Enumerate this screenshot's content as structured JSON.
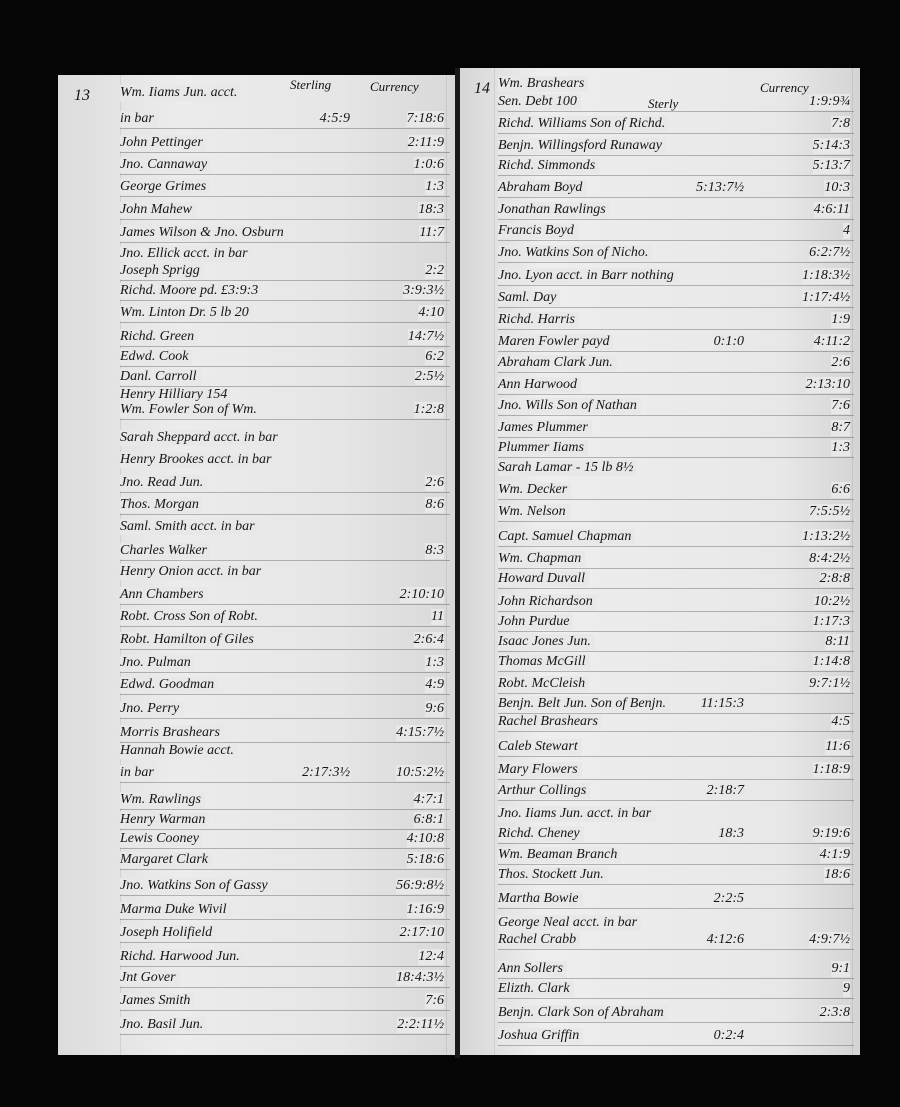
{
  "left_page": {
    "folio": "13",
    "header_sterling": "Sterling",
    "header_currency": "Currency",
    "entries": [
      {
        "name": "Wm. Iiams Jun. acct.",
        "sterling": "",
        "currency": ""
      },
      {
        "name": "in bar",
        "sterling": "4:5:9",
        "currency": "7:18:6"
      },
      {
        "name": "John Pettinger",
        "sterling": "",
        "currency": "2:11:9"
      },
      {
        "name": "Jno. Cannaway",
        "sterling": "",
        "currency": "1:0:6"
      },
      {
        "name": "George Grimes",
        "sterling": "",
        "currency": "1:3"
      },
      {
        "name": "John Mahew",
        "sterling": "",
        "currency": "18:3"
      },
      {
        "name": "James Wilson & Jno. Osburn",
        "sterling": "",
        "currency": "11:7"
      },
      {
        "name": "Jno. Ellick acct. in bar",
        "sterling": "",
        "currency": ""
      },
      {
        "name": "Joseph Sprigg",
        "sterling": "",
        "currency": "2:2"
      },
      {
        "name": "Richd. Moore pd. £3:9:3",
        "sterling": "",
        "currency": "3:9:3½"
      },
      {
        "name": "Wm. Linton Dr. 5 lb 20",
        "sterling": "",
        "currency": "4:10"
      },
      {
        "name": "Richd. Green",
        "sterling": "",
        "currency": "14:7½"
      },
      {
        "name": "Edwd. Cook",
        "sterling": "",
        "currency": "6:2"
      },
      {
        "name": "Danl. Carroll",
        "sterling": "",
        "currency": "2:5½"
      },
      {
        "name": "Henry Hilliary  154",
        "sterling": "",
        "currency": ""
      },
      {
        "name": "Wm. Fowler Son of Wm.",
        "sterling": "",
        "currency": "1:2:8"
      },
      {
        "name": "Sarah Sheppard acct. in bar",
        "sterling": "",
        "currency": ""
      },
      {
        "name": "Henry Brookes acct. in bar",
        "sterling": "",
        "currency": ""
      },
      {
        "name": "Jno. Read Jun.",
        "sterling": "",
        "currency": "2:6"
      },
      {
        "name": "Thos. Morgan",
        "sterling": "",
        "currency": "8:6"
      },
      {
        "name": "Saml. Smith acct. in bar",
        "sterling": "",
        "currency": ""
      },
      {
        "name": "Charles Walker",
        "sterling": "",
        "currency": "8:3"
      },
      {
        "name": "Henry Onion acct. in bar",
        "sterling": "",
        "currency": ""
      },
      {
        "name": "Ann Chambers",
        "sterling": "",
        "currency": "2:10:10"
      },
      {
        "name": "Robt. Cross Son of Robt.",
        "sterling": "",
        "currency": "11"
      },
      {
        "name": "Robt. Hamilton of Giles",
        "sterling": "",
        "currency": "2:6:4"
      },
      {
        "name": "Jno. Pulman",
        "sterling": "",
        "currency": "1:3"
      },
      {
        "name": "Edwd. Goodman",
        "sterling": "",
        "currency": "4:9"
      },
      {
        "name": "Jno. Perry",
        "sterling": "",
        "currency": "9:6"
      },
      {
        "name": "Morris Brashears",
        "sterling": "",
        "currency": "4:15:7½"
      },
      {
        "name": "Hannah Bowie acct.",
        "sterling": "",
        "currency": ""
      },
      {
        "name": "in bar",
        "sterling": "2:17:3½",
        "currency": "10:5:2½"
      },
      {
        "name": "Wm. Rawlings",
        "sterling": "",
        "currency": "4:7:1"
      },
      {
        "name": "Henry Warman",
        "sterling": "",
        "currency": "6:8:1"
      },
      {
        "name": "Lewis Cooney",
        "sterling": "",
        "currency": "4:10:8"
      },
      {
        "name": "Margaret Clark",
        "sterling": "",
        "currency": "5:18:6"
      },
      {
        "name": "Jno. Watkins Son of Gassy",
        "sterling": "",
        "currency": "56:9:8½"
      },
      {
        "name": "Marma Duke Wivil",
        "sterling": "",
        "currency": "1:16:9"
      },
      {
        "name": "Joseph Holifield",
        "sterling": "",
        "currency": "2:17:10"
      },
      {
        "name": "Richd. Harwood Jun.",
        "sterling": "",
        "currency": "12:4"
      },
      {
        "name": "Jnt Gover",
        "sterling": "",
        "currency": "18:4:3½"
      },
      {
        "name": "James Smith",
        "sterling": "",
        "currency": "7:6"
      },
      {
        "name": "Jno. Basil Jun.",
        "sterling": "",
        "currency": "2:2:11½"
      }
    ]
  },
  "right_page": {
    "folio": "14",
    "header_sterling": "Sterly",
    "header_currency": "Currency",
    "entries": [
      {
        "name": "Wm. Brashears",
        "sterling": "",
        "currency": ""
      },
      {
        "name": "Sen.    Debt 100",
        "sterling": "",
        "currency": "1:9:9¾"
      },
      {
        "name": "Richd. Williams Son of Richd.",
        "sterling": "",
        "currency": "7:8"
      },
      {
        "name": "Benjn. Willingsford Runaway",
        "sterling": "",
        "currency": "5:14:3"
      },
      {
        "name": "Richd. Simmonds",
        "sterling": "",
        "currency": "5:13:7"
      },
      {
        "name": "Abraham Boyd",
        "sterling": "5:13:7½",
        "currency": "10:3"
      },
      {
        "name": "Jonathan Rawlings",
        "sterling": "",
        "currency": "4:6:11"
      },
      {
        "name": "Francis Boyd",
        "sterling": "",
        "currency": "4"
      },
      {
        "name": "Jno. Watkins Son of Nicho.",
        "sterling": "",
        "currency": "6:2:7½"
      },
      {
        "name": "Jno. Lyon acct. in Barr nothing",
        "sterling": "",
        "currency": "1:18:3½"
      },
      {
        "name": "Saml. Day",
        "sterling": "",
        "currency": "1:17:4½"
      },
      {
        "name": "Richd. Harris",
        "sterling": "",
        "currency": "1:9"
      },
      {
        "name": "Maren Fowler payd",
        "sterling": "0:1:0",
        "currency": "4:11:2"
      },
      {
        "name": "Abraham Clark Jun.",
        "sterling": "",
        "currency": "2:6"
      },
      {
        "name": "Ann Harwood",
        "sterling": "",
        "currency": "2:13:10"
      },
      {
        "name": "Jno. Wills Son of Nathan",
        "sterling": "",
        "currency": "7:6"
      },
      {
        "name": "James Plummer",
        "sterling": "",
        "currency": "8:7"
      },
      {
        "name": "Plummer Iiams",
        "sterling": "",
        "currency": "1:3"
      },
      {
        "name": "Sarah Lamar - 15 lb 8½",
        "sterling": "",
        "currency": ""
      },
      {
        "name": "Wm. Decker",
        "sterling": "",
        "currency": "6:6"
      },
      {
        "name": "Wm. Nelson",
        "sterling": "",
        "currency": "7:5:5½"
      },
      {
        "name": "Capt. Samuel Chapman",
        "sterling": "",
        "currency": "1:13:2½"
      },
      {
        "name": "Wm. Chapman",
        "sterling": "",
        "currency": "8:4:2½"
      },
      {
        "name": "Howard Duvall",
        "sterling": "",
        "currency": "2:8:8"
      },
      {
        "name": "John Richardson",
        "sterling": "",
        "currency": "10:2½"
      },
      {
        "name": "John Purdue",
        "sterling": "",
        "currency": "1:17:3"
      },
      {
        "name": "Isaac Jones Jun.",
        "sterling": "",
        "currency": "8:11"
      },
      {
        "name": "Thomas McGill",
        "sterling": "",
        "currency": "1:14:8"
      },
      {
        "name": "Robt. McCleish",
        "sterling": "",
        "currency": "9:7:1½"
      },
      {
        "name": "Benjn. Belt Jun. Son of Benjn.",
        "sterling": "11:15:3",
        "currency": ""
      },
      {
        "name": "Rachel Brashears",
        "sterling": "",
        "currency": "4:5"
      },
      {
        "name": "Caleb Stewart",
        "sterling": "",
        "currency": "11:6"
      },
      {
        "name": "Mary Flowers",
        "sterling": "",
        "currency": "1:18:9"
      },
      {
        "name": "Arthur Collings",
        "sterling": "2:18:7",
        "currency": ""
      },
      {
        "name": "Jno. Iiams Jun. acct. in bar",
        "sterling": "",
        "currency": ""
      },
      {
        "name": "Richd. Cheney",
        "sterling": "18:3",
        "currency": "9:19:6"
      },
      {
        "name": "Wm. Beaman Branch",
        "sterling": "",
        "currency": "4:1:9"
      },
      {
        "name": "Thos. Stockett Jun.",
        "sterling": "",
        "currency": "18:6"
      },
      {
        "name": "Martha Bowie",
        "sterling": "2:2:5",
        "currency": ""
      },
      {
        "name": "George Neal acct. in bar",
        "sterling": "",
        "currency": ""
      },
      {
        "name": "Rachel Crabb",
        "sterling": "4:12:6",
        "currency": "4:9:7½"
      },
      {
        "name": "Ann Sollers",
        "sterling": "",
        "currency": "9:1"
      },
      {
        "name": "Elizth. Clark",
        "sterling": "",
        "currency": "9"
      },
      {
        "name": "Benjn. Clark Son of Abraham",
        "sterling": "",
        "currency": "2:3:8"
      },
      {
        "name": "Joshua Griffin",
        "sterling": "0:2:4",
        "currency": ""
      }
    ]
  }
}
